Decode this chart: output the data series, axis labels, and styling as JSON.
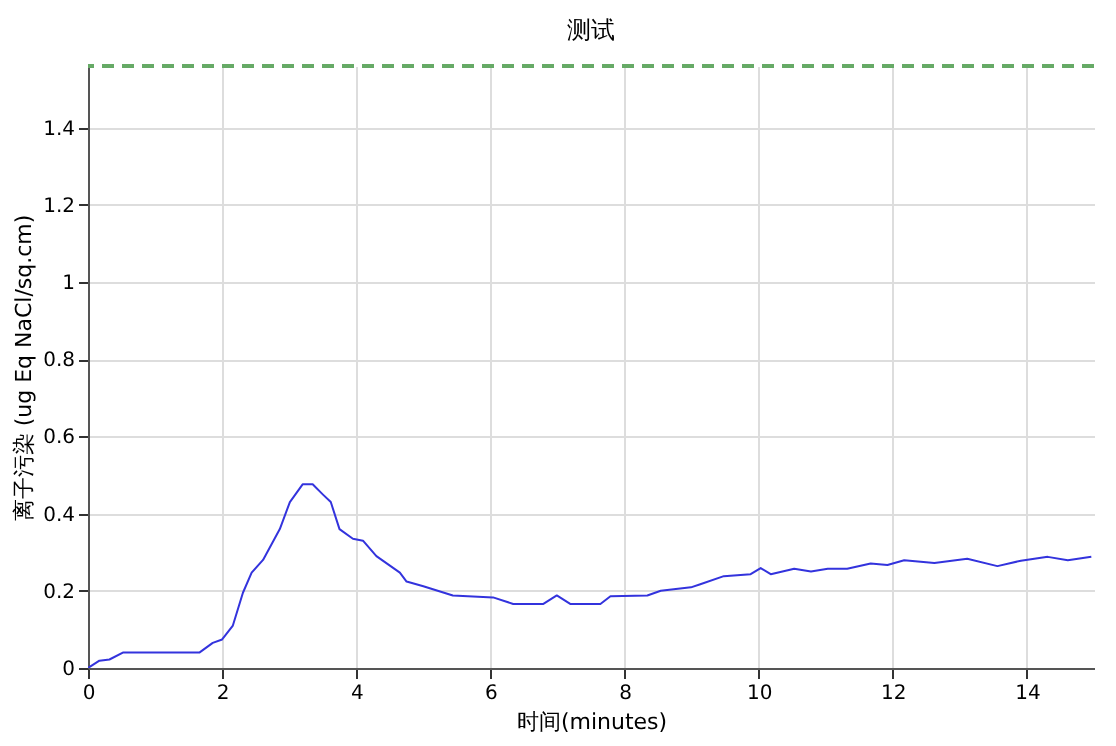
{
  "chart_data": {
    "type": "line",
    "title": "测试",
    "xlabel": "时间(minutes)",
    "ylabel": "离子污染 (ug Eq NaCl/sq.cm)",
    "xlim": [
      0,
      15
    ],
    "xticks": [
      0,
      2,
      4,
      6,
      8,
      10,
      12,
      14
    ],
    "ylim": [
      0,
      1.56
    ],
    "yticks": [
      0,
      0.2,
      0.4,
      0.6,
      0.8,
      1,
      1.2,
      1.4
    ],
    "grid": true,
    "x": [
      0,
      0.17,
      0.32,
      0.52,
      1.66,
      1.86,
      2.0,
      2.16,
      2.31,
      2.44,
      2.61,
      2.86,
      3.01,
      3.2,
      3.35,
      3.5,
      3.62,
      3.75,
      3.95,
      4.1,
      4.3,
      4.65,
      4.75,
      5.0,
      5.44,
      6.04,
      6.34,
      6.79,
      6.99,
      7.19,
      7.24,
      7.64,
      7.79,
      8.34,
      8.54,
      8.99,
      9.13,
      9.48,
      9.88,
      10.03,
      10.18,
      10.53,
      10.78,
      11.03,
      11.32,
      11.67,
      11.92,
      12.17,
      12.62,
      13.11,
      13.56,
      13.91,
      14.31,
      14.61,
      14.96
    ],
    "series": [
      {
        "color": "#3333dd",
        "values": [
          0,
          0.019,
          0.022,
          0.04,
          0.04,
          0.065,
          0.074,
          0.11,
          0.195,
          0.247,
          0.28,
          0.36,
          0.43,
          0.476,
          0.476,
          0.45,
          0.43,
          0.36,
          0.335,
          0.33,
          0.29,
          0.247,
          0.224,
          0.212,
          0.188,
          0.183,
          0.166,
          0.166,
          0.188,
          0.166,
          0.166,
          0.166,
          0.186,
          0.188,
          0.2,
          0.209,
          0.217,
          0.238,
          0.243,
          0.259,
          0.243,
          0.257,
          0.25,
          0.257,
          0.257,
          0.271,
          0.267,
          0.279,
          0.272,
          0.283,
          0.264,
          0.278,
          0.288,
          0.279,
          0.288
        ]
      }
    ],
    "ref_lines": [
      {
        "axis": "y",
        "value": 1.56,
        "color": "#66aa66",
        "line_style": "dashed"
      }
    ]
  }
}
